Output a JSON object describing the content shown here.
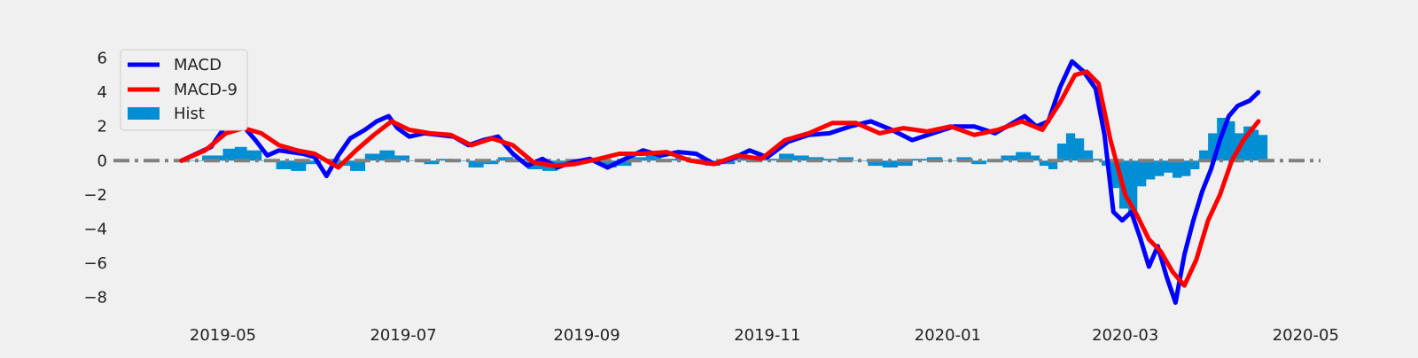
{
  "chart_data": {
    "type": "line",
    "title": "",
    "xlabel": "",
    "ylabel": "",
    "x_range": [
      "2019-03-25",
      "2020-05-06"
    ],
    "ylim": [
      -9,
      6.8
    ],
    "x_ticks": [
      {
        "date": "2019-05-01",
        "label": "2019-05"
      },
      {
        "date": "2019-07-01",
        "label": "2019-07"
      },
      {
        "date": "2019-09-01",
        "label": "2019-09"
      },
      {
        "date": "2019-11-01",
        "label": "2019-11"
      },
      {
        "date": "2020-01-01",
        "label": "2020-01"
      },
      {
        "date": "2020-03-01",
        "label": "2020-03"
      },
      {
        "date": "2020-05-01",
        "label": "2020-05"
      }
    ],
    "y_ticks": [
      {
        "value": 6,
        "label": "6"
      },
      {
        "value": 4,
        "label": "4"
      },
      {
        "value": 2,
        "label": "2"
      },
      {
        "value": 0,
        "label": "0"
      },
      {
        "value": -2,
        "label": "−2"
      },
      {
        "value": -4,
        "label": "−4"
      },
      {
        "value": -6,
        "label": "−6"
      },
      {
        "value": -8,
        "label": "−8"
      }
    ],
    "legend": {
      "position": "top-left",
      "entries": [
        {
          "label": "MACD",
          "color": "#0000ff",
          "kind": "line"
        },
        {
          "label": "MACD-9",
          "color": "#ff0000",
          "kind": "line"
        },
        {
          "label": "Hist",
          "color": "#008fd5",
          "kind": "bar"
        }
      ]
    },
    "zero_line": {
      "value": 0,
      "color": "#808080",
      "style": "dash-dot"
    },
    "grid": false,
    "series": [
      {
        "name": "MACD",
        "color": "#0000ff",
        "x": [
          "2019-04-17",
          "2019-04-22",
          "2019-04-27",
          "2019-05-01",
          "2019-05-04",
          "2019-05-08",
          "2019-05-12",
          "2019-05-16",
          "2019-05-20",
          "2019-05-24",
          "2019-05-28",
          "2019-06-01",
          "2019-06-05",
          "2019-06-09",
          "2019-06-13",
          "2019-06-18",
          "2019-06-22",
          "2019-06-26",
          "2019-06-29",
          "2019-07-03",
          "2019-07-08",
          "2019-07-13",
          "2019-07-18",
          "2019-07-23",
          "2019-07-28",
          "2019-08-02",
          "2019-08-07",
          "2019-08-12",
          "2019-08-17",
          "2019-08-22",
          "2019-08-27",
          "2019-09-02",
          "2019-09-08",
          "2019-09-14",
          "2019-09-20",
          "2019-09-26",
          "2019-10-02",
          "2019-10-08",
          "2019-10-14",
          "2019-10-20",
          "2019-10-26",
          "2019-11-01",
          "2019-11-08",
          "2019-11-15",
          "2019-11-22",
          "2019-11-29",
          "2019-12-06",
          "2019-12-13",
          "2019-12-20",
          "2019-12-27",
          "2020-01-03",
          "2020-01-10",
          "2020-01-17",
          "2020-01-22",
          "2020-01-27",
          "2020-01-31",
          "2020-02-04",
          "2020-02-08",
          "2020-02-12",
          "2020-02-16",
          "2020-02-20",
          "2020-02-23",
          "2020-02-26",
          "2020-02-29",
          "2020-03-03",
          "2020-03-06",
          "2020-03-09",
          "2020-03-12",
          "2020-03-15",
          "2020-03-18",
          "2020-03-21",
          "2020-03-24",
          "2020-03-27",
          "2020-03-30",
          "2020-04-02",
          "2020-04-05",
          "2020-04-08",
          "2020-04-12",
          "2020-04-15"
        ],
        "values": [
          0.0,
          0.4,
          0.8,
          1.8,
          2.3,
          2.0,
          1.2,
          0.3,
          0.6,
          0.5,
          0.4,
          0.2,
          -0.9,
          0.3,
          1.3,
          1.8,
          2.3,
          2.6,
          1.9,
          1.4,
          1.6,
          1.5,
          1.4,
          0.9,
          1.2,
          1.4,
          0.4,
          -0.3,
          0.1,
          -0.4,
          -0.1,
          0.1,
          -0.4,
          0.1,
          0.6,
          0.3,
          0.5,
          0.4,
          -0.2,
          0.1,
          0.6,
          0.2,
          1.1,
          1.5,
          1.6,
          2.0,
          2.3,
          1.8,
          1.2,
          1.6,
          2.0,
          2.0,
          1.6,
          2.1,
          2.6,
          2.0,
          2.3,
          4.3,
          5.8,
          5.2,
          4.2,
          1.5,
          -3.0,
          -3.5,
          -3.0,
          -4.5,
          -6.2,
          -5.0,
          -6.8,
          -8.3,
          -5.5,
          -3.5,
          -1.8,
          -0.5,
          1.2,
          2.6,
          3.2,
          3.5,
          4.0
        ]
      },
      {
        "name": "MACD-9",
        "color": "#ff0000",
        "x": [
          "2019-04-17",
          "2019-04-25",
          "2019-05-02",
          "2019-05-08",
          "2019-05-14",
          "2019-05-20",
          "2019-05-26",
          "2019-06-01",
          "2019-06-05",
          "2019-06-09",
          "2019-06-15",
          "2019-06-21",
          "2019-06-27",
          "2019-07-03",
          "2019-07-10",
          "2019-07-17",
          "2019-07-24",
          "2019-07-31",
          "2019-08-07",
          "2019-08-14",
          "2019-08-21",
          "2019-08-28",
          "2019-09-05",
          "2019-09-12",
          "2019-09-20",
          "2019-09-28",
          "2019-10-06",
          "2019-10-14",
          "2019-10-22",
          "2019-10-30",
          "2019-11-07",
          "2019-11-15",
          "2019-11-23",
          "2019-12-01",
          "2019-12-09",
          "2019-12-17",
          "2019-12-25",
          "2020-01-02",
          "2020-01-10",
          "2020-01-18",
          "2020-01-26",
          "2020-02-02",
          "2020-02-08",
          "2020-02-13",
          "2020-02-17",
          "2020-02-21",
          "2020-02-25",
          "2020-03-01",
          "2020-03-05",
          "2020-03-09",
          "2020-03-13",
          "2020-03-17",
          "2020-03-21",
          "2020-03-25",
          "2020-03-29",
          "2020-04-02",
          "2020-04-06",
          "2020-04-10",
          "2020-04-15"
        ],
        "values": [
          0.0,
          0.6,
          1.6,
          1.9,
          1.6,
          0.9,
          0.6,
          0.4,
          0.0,
          -0.4,
          0.6,
          1.5,
          2.3,
          1.8,
          1.6,
          1.5,
          0.9,
          1.3,
          0.9,
          -0.1,
          -0.3,
          -0.2,
          0.1,
          0.4,
          0.4,
          0.5,
          0.0,
          -0.2,
          0.3,
          0.1,
          1.2,
          1.6,
          2.2,
          2.2,
          1.6,
          1.9,
          1.7,
          2.0,
          1.5,
          1.8,
          2.3,
          1.8,
          3.4,
          5.0,
          5.2,
          4.5,
          1.2,
          -2.0,
          -3.2,
          -4.6,
          -5.3,
          -6.5,
          -7.3,
          -5.8,
          -3.5,
          -2.0,
          0.0,
          1.2,
          2.3
        ]
      },
      {
        "name": "Hist",
        "color": "#008fd5",
        "x": [
          "2019-04-17",
          "2019-04-24",
          "2019-05-01",
          "2019-05-05",
          "2019-05-09",
          "2019-05-14",
          "2019-05-19",
          "2019-05-24",
          "2019-05-29",
          "2019-06-03",
          "2019-06-08",
          "2019-06-13",
          "2019-06-18",
          "2019-06-23",
          "2019-06-28",
          "2019-07-03",
          "2019-07-08",
          "2019-07-13",
          "2019-07-18",
          "2019-07-23",
          "2019-07-28",
          "2019-08-02",
          "2019-08-07",
          "2019-08-12",
          "2019-08-17",
          "2019-08-22",
          "2019-08-27",
          "2019-09-01",
          "2019-09-06",
          "2019-09-11",
          "2019-09-16",
          "2019-09-21",
          "2019-09-26",
          "2019-10-01",
          "2019-10-06",
          "2019-10-11",
          "2019-10-16",
          "2019-10-21",
          "2019-10-26",
          "2019-10-31",
          "2019-11-05",
          "2019-11-10",
          "2019-11-15",
          "2019-11-20",
          "2019-11-25",
          "2019-11-30",
          "2019-12-05",
          "2019-12-10",
          "2019-12-15",
          "2019-12-20",
          "2019-12-25",
          "2019-12-30",
          "2020-01-04",
          "2020-01-09",
          "2020-01-14",
          "2020-01-19",
          "2020-01-24",
          "2020-01-29",
          "2020-02-01",
          "2020-02-04",
          "2020-02-07",
          "2020-02-10",
          "2020-02-13",
          "2020-02-16",
          "2020-02-19",
          "2020-02-22",
          "2020-02-25",
          "2020-02-28",
          "2020-03-02",
          "2020-03-05",
          "2020-03-08",
          "2020-03-11",
          "2020-03-14",
          "2020-03-17",
          "2020-03-20",
          "2020-03-23",
          "2020-03-26",
          "2020-03-29",
          "2020-04-01",
          "2020-04-04",
          "2020-04-07",
          "2020-04-10",
          "2020-04-13",
          "2020-04-15"
        ],
        "values": [
          0.0,
          0.3,
          0.7,
          0.8,
          0.6,
          0.0,
          -0.5,
          -0.6,
          -0.2,
          0.1,
          -0.3,
          -0.6,
          0.4,
          0.6,
          0.3,
          0.0,
          -0.2,
          0.1,
          0.0,
          -0.4,
          -0.2,
          0.2,
          0.1,
          -0.5,
          -0.6,
          -0.3,
          -0.1,
          0.0,
          -0.4,
          -0.3,
          0.2,
          0.3,
          0.1,
          0.2,
          0.0,
          -0.3,
          -0.2,
          0.2,
          0.3,
          0.1,
          0.4,
          0.3,
          0.2,
          0.1,
          0.2,
          0.0,
          -0.3,
          -0.4,
          -0.3,
          0.1,
          0.2,
          0.0,
          0.2,
          -0.2,
          0.0,
          0.3,
          0.5,
          0.3,
          -0.3,
          -0.5,
          1.0,
          1.6,
          1.3,
          0.6,
          0.1,
          -0.3,
          -1.6,
          -2.8,
          -3.2,
          -1.5,
          -1.1,
          -0.9,
          -0.7,
          -1.0,
          -0.9,
          -0.5,
          0.6,
          1.6,
          2.5,
          2.3,
          1.6,
          2.0,
          1.8,
          1.5
        ]
      }
    ]
  }
}
